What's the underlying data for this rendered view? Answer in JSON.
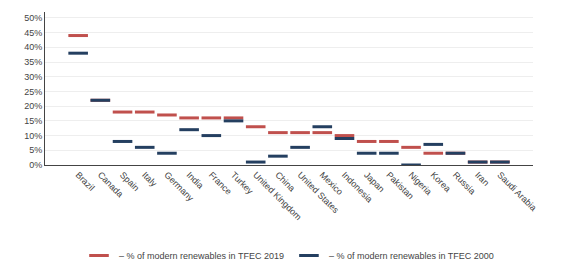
{
  "chart_data": {
    "type": "scatter",
    "marker": "line-ew",
    "categories": [
      "Brazil",
      "Canada",
      "Spain",
      "Italy",
      "Germany",
      "India",
      "France",
      "Turkey",
      "United Kingdom",
      "China",
      "United States",
      "Mexico",
      "Indonesia",
      "Japan",
      "Pakistan",
      "Nigeria",
      "Korea",
      "Russia",
      "Iran",
      "Saudi Arabia"
    ],
    "series": [
      {
        "name": "– % of modern renewables in TFEC 2019",
        "color": "#C0504D",
        "values": [
          0.44,
          0.22,
          0.18,
          0.18,
          0.17,
          0.16,
          0.16,
          0.16,
          0.13,
          0.11,
          0.11,
          0.11,
          0.1,
          0.08,
          0.08,
          0.06,
          0.04,
          0.04,
          0.01,
          0.01
        ]
      },
      {
        "name": "– % of modern renewables in TFEC 2000",
        "color": "#243F60",
        "values": [
          0.38,
          0.22,
          0.08,
          0.06,
          0.04,
          0.12,
          0.1,
          0.15,
          0.01,
          0.03,
          0.06,
          0.13,
          0.09,
          0.04,
          0.04,
          0.0,
          0.07,
          0.04,
          0.01,
          0.01
        ]
      }
    ],
    "ylim": [
      0,
      0.52
    ],
    "yticks": [
      {
        "value": 0.0,
        "label": "0%"
      },
      {
        "value": 0.05,
        "label": "5%"
      },
      {
        "value": 0.1,
        "label": "10%"
      },
      {
        "value": 0.15,
        "label": "15%"
      },
      {
        "value": 0.2,
        "label": "20%"
      },
      {
        "value": 0.25,
        "label": "25%"
      },
      {
        "value": 0.3,
        "label": "30%"
      },
      {
        "value": 0.35,
        "label": "35%"
      },
      {
        "value": 0.4,
        "label": "40%"
      },
      {
        "value": 0.45,
        "label": "45%"
      },
      {
        "value": 0.5,
        "label": "50%"
      }
    ],
    "grid": true,
    "legend": "bottom"
  }
}
